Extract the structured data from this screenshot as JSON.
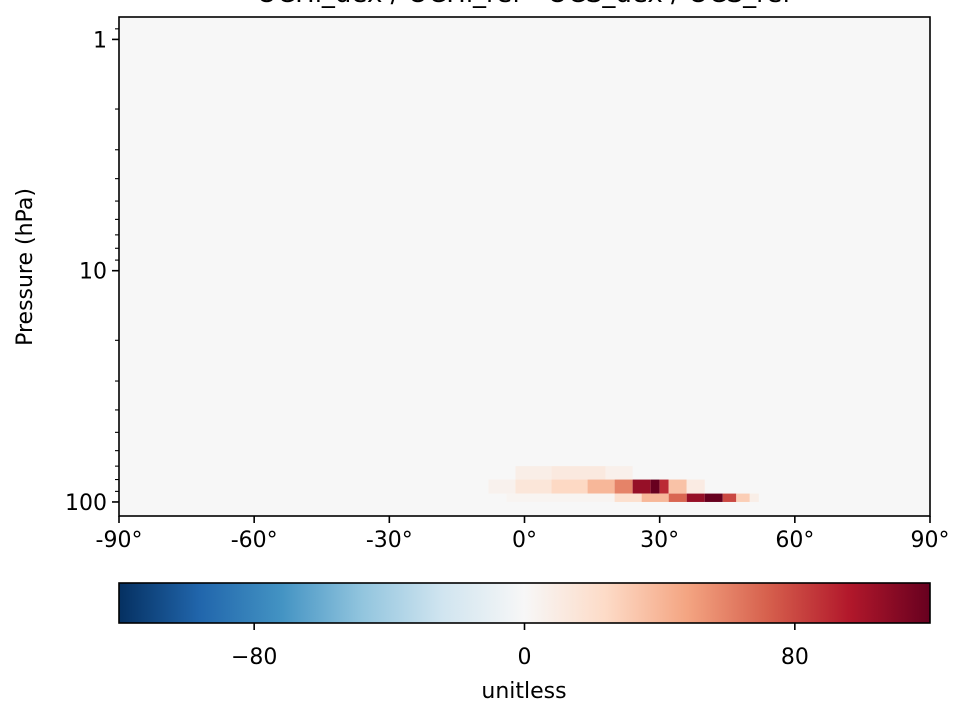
{
  "chart_data": {
    "type": "heatmap",
    "title": "OCHi_dex / OCHi_ref - OCS_dex / OCS_ref",
    "xlabel": "",
    "ylabel": "Pressure (hPa)",
    "x_axis": {
      "range": [
        -90,
        90
      ],
      "ticks": [
        -90,
        -60,
        -30,
        0,
        30,
        60,
        90
      ],
      "tick_labels": [
        "-90°",
        "-60°",
        "-30°",
        "0°",
        "30°",
        "60°",
        "90°"
      ]
    },
    "y_axis": {
      "scale": "log",
      "inverted": true,
      "range": [
        0.8,
        115
      ],
      "ticks": [
        1,
        10,
        100
      ],
      "tick_labels": [
        "1",
        "10",
        "100"
      ]
    },
    "background_value": 0,
    "cells": [
      {
        "lat_range": [
          -2,
          6
        ],
        "p_range": [
          70,
          80
        ],
        "value": 8
      },
      {
        "lat_range": [
          6,
          18
        ],
        "p_range": [
          70,
          80
        ],
        "value": 12
      },
      {
        "lat_range": [
          18,
          24
        ],
        "p_range": [
          70,
          80
        ],
        "value": 6
      },
      {
        "lat_range": [
          -8,
          -2
        ],
        "p_range": [
          80,
          92
        ],
        "value": 5
      },
      {
        "lat_range": [
          -2,
          6
        ],
        "p_range": [
          80,
          92
        ],
        "value": 15
      },
      {
        "lat_range": [
          6,
          14
        ],
        "p_range": [
          80,
          92
        ],
        "value": 25
      },
      {
        "lat_range": [
          14,
          20
        ],
        "p_range": [
          80,
          92
        ],
        "value": 40
      },
      {
        "lat_range": [
          20,
          24
        ],
        "p_range": [
          80,
          92
        ],
        "value": 60
      },
      {
        "lat_range": [
          24,
          28
        ],
        "p_range": [
          80,
          92
        ],
        "value": 105
      },
      {
        "lat_range": [
          28,
          30
        ],
        "p_range": [
          80,
          92
        ],
        "value": 120
      },
      {
        "lat_range": [
          30,
          32
        ],
        "p_range": [
          80,
          92
        ],
        "value": 90
      },
      {
        "lat_range": [
          32,
          36
        ],
        "p_range": [
          80,
          92
        ],
        "value": 35
      },
      {
        "lat_range": [
          36,
          40
        ],
        "p_range": [
          80,
          92
        ],
        "value": 10
      },
      {
        "lat_range": [
          -4,
          20
        ],
        "p_range": [
          92,
          100
        ],
        "value": 3
      },
      {
        "lat_range": [
          20,
          26
        ],
        "p_range": [
          92,
          100
        ],
        "value": 20
      },
      {
        "lat_range": [
          26,
          32
        ],
        "p_range": [
          92,
          100
        ],
        "value": 40
      },
      {
        "lat_range": [
          32,
          36
        ],
        "p_range": [
          92,
          100
        ],
        "value": 70
      },
      {
        "lat_range": [
          36,
          40
        ],
        "p_range": [
          92,
          100
        ],
        "value": 105
      },
      {
        "lat_range": [
          40,
          44
        ],
        "p_range": [
          92,
          100
        ],
        "value": 120
      },
      {
        "lat_range": [
          44,
          47
        ],
        "p_range": [
          92,
          100
        ],
        "value": 80
      },
      {
        "lat_range": [
          47,
          50
        ],
        "p_range": [
          92,
          100
        ],
        "value": 30
      },
      {
        "lat_range": [
          50,
          52
        ],
        "p_range": [
          92,
          100
        ],
        "value": 8
      }
    ],
    "colorbar": {
      "colormap": "RdBu_r",
      "range": [
        -120,
        120
      ],
      "ticks": [
        -80,
        0,
        80
      ],
      "tick_labels": [
        "−80",
        "0",
        "80"
      ],
      "label": "unitless"
    },
    "grid": false,
    "legend": "none"
  },
  "colors": {
    "background_zero": "#f7f7f7",
    "neg_max": "#053061",
    "pos_max": "#67001f"
  }
}
